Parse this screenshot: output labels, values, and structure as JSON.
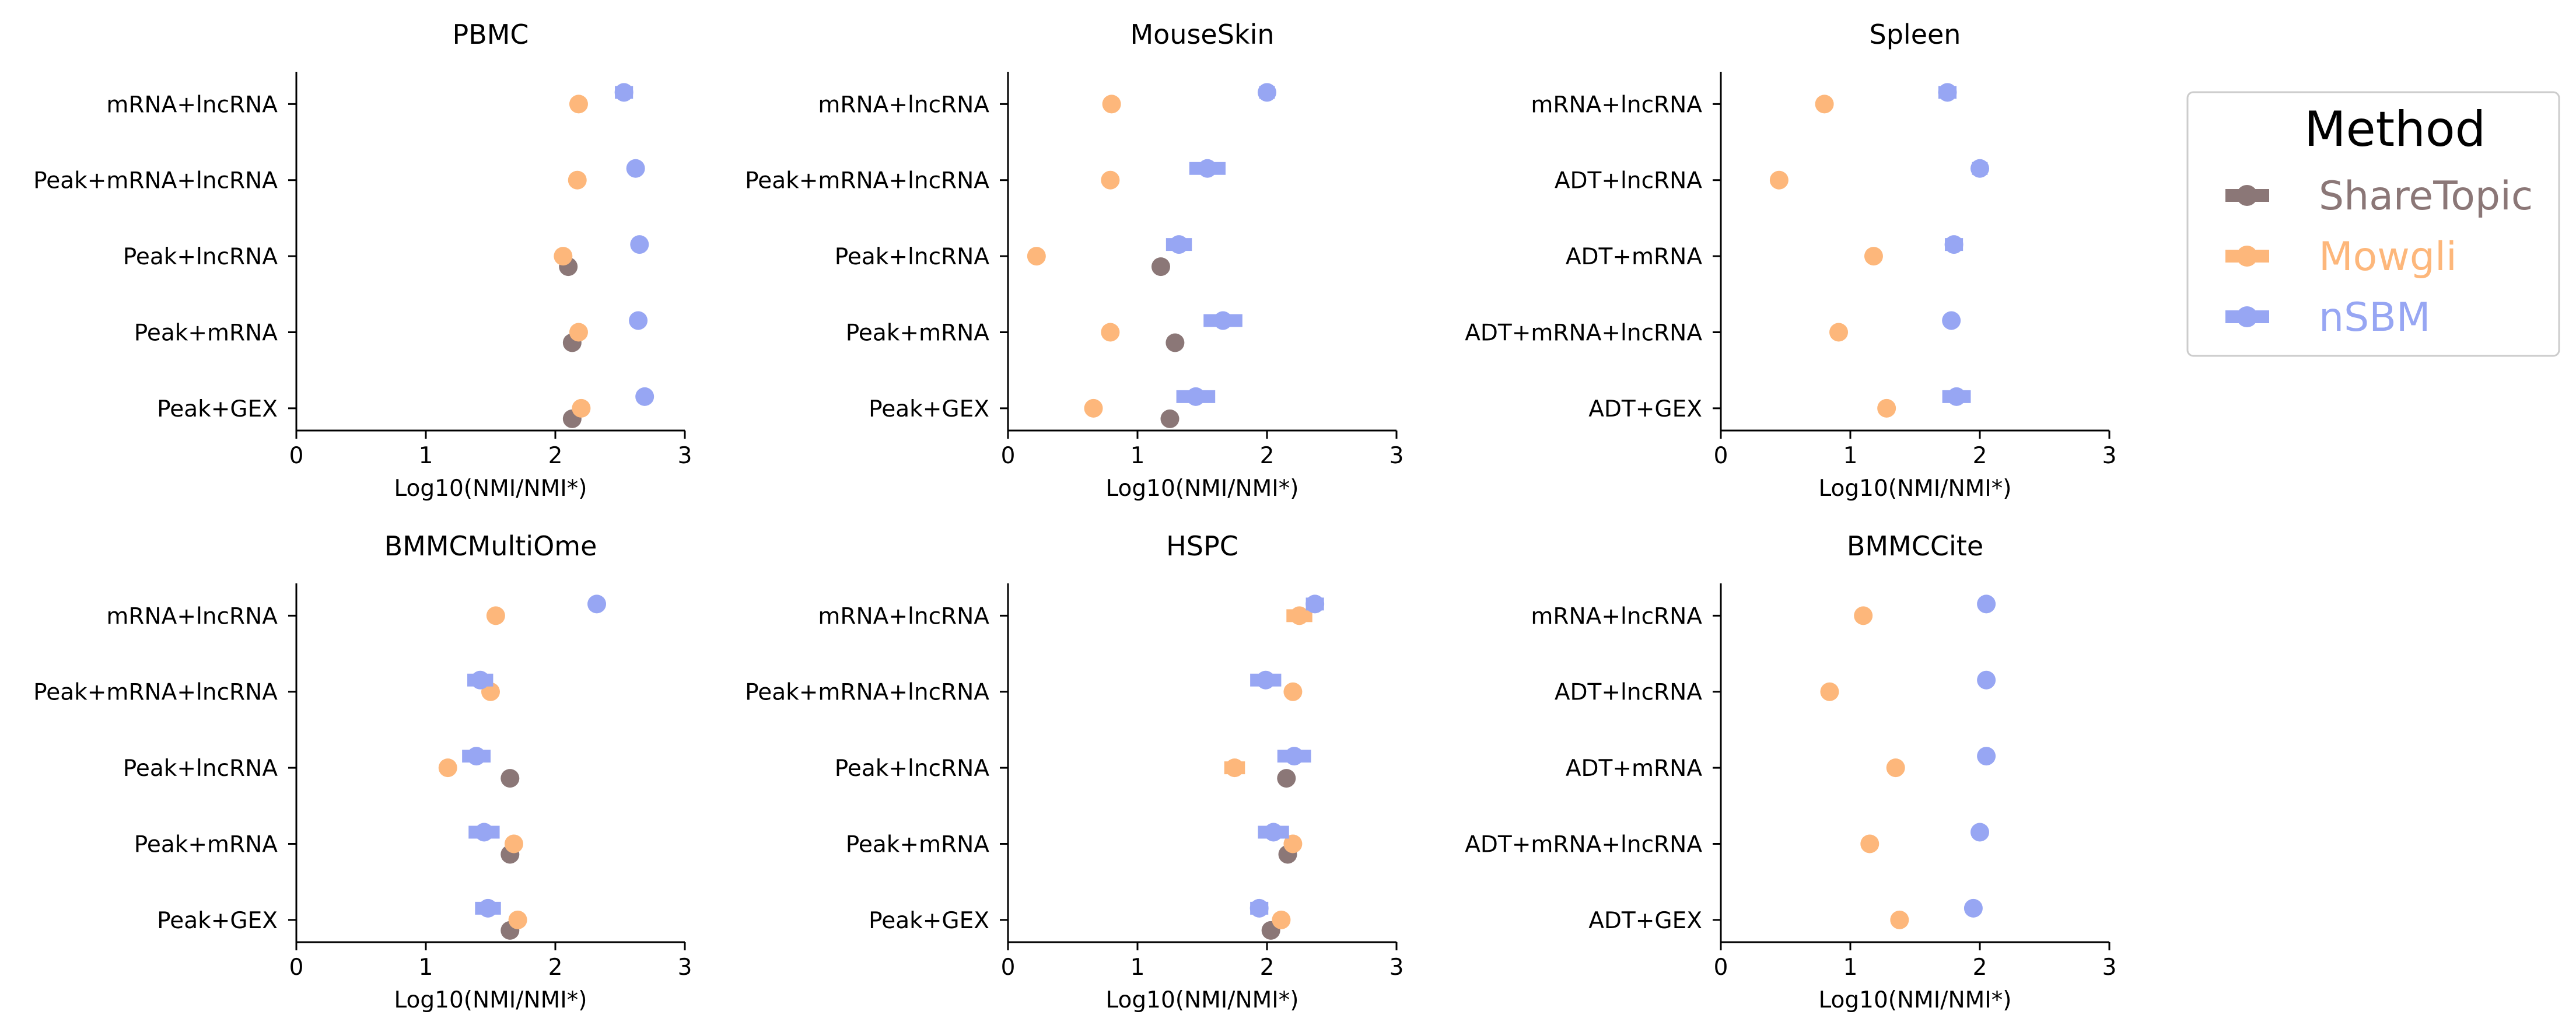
{
  "legend": {
    "title": "Method",
    "entries": [
      {
        "name": "ShareTopic",
        "color": "#8B7777"
      },
      {
        "name": "Mowgli",
        "color": "#FDB77B"
      },
      {
        "name": "nSBM",
        "color": "#97A6F3"
      }
    ]
  },
  "chart_data": [
    {
      "type": "scatter",
      "title": "PBMC",
      "xlabel": "Log10(NMI/NMI*)",
      "xlim": [
        0,
        3
      ],
      "xticks": [
        "0",
        "1",
        "2",
        "3"
      ],
      "categories": [
        "mRNA+lncRNA",
        "Peak+mRNA+lncRNA",
        "Peak+lncRNA",
        "Peak+mRNA",
        "Peak+GEX"
      ],
      "series": [
        {
          "name": "ShareTopic",
          "values": [
            null,
            null,
            2.1,
            2.13,
            2.13
          ],
          "errors": [
            0,
            0,
            0,
            0,
            0
          ]
        },
        {
          "name": "Mowgli",
          "values": [
            2.18,
            2.17,
            2.06,
            2.18,
            2.2
          ],
          "errors": [
            0,
            0,
            0,
            0,
            0
          ]
        },
        {
          "name": "nSBM",
          "values": [
            2.53,
            2.62,
            2.65,
            2.64,
            2.69
          ],
          "errors": [
            0.07,
            0,
            0,
            0,
            0
          ]
        }
      ]
    },
    {
      "type": "scatter",
      "title": "MouseSkin",
      "xlabel": "Log10(NMI/NMI*)",
      "xlim": [
        0,
        3
      ],
      "xticks": [
        "0",
        "1",
        "2",
        "3"
      ],
      "categories": [
        "mRNA+lncRNA",
        "Peak+mRNA+lncRNA",
        "Peak+lncRNA",
        "Peak+mRNA",
        "Peak+GEX"
      ],
      "series": [
        {
          "name": "ShareTopic",
          "values": [
            null,
            null,
            1.18,
            1.29,
            1.25
          ],
          "errors": [
            0,
            0,
            0,
            0,
            0
          ]
        },
        {
          "name": "Mowgli",
          "values": [
            0.8,
            0.79,
            0.22,
            0.79,
            0.66
          ],
          "errors": [
            0,
            0,
            0,
            0,
            0
          ]
        },
        {
          "name": "nSBM",
          "values": [
            2.0,
            1.54,
            1.32,
            1.66,
            1.45
          ],
          "errors": [
            0.06,
            0.14,
            0.1,
            0.15,
            0.15
          ]
        }
      ]
    },
    {
      "type": "scatter",
      "title": "Spleen",
      "xlabel": "Log10(NMI/NMI*)",
      "xlim": [
        0,
        3
      ],
      "xticks": [
        "0",
        "1",
        "2",
        "3"
      ],
      "categories": [
        "mRNA+lncRNA",
        "ADT+lncRNA",
        "ADT+mRNA",
        "ADT+mRNA+lncRNA",
        "ADT+GEX"
      ],
      "series": [
        {
          "name": "Mowgli",
          "values": [
            0.8,
            0.45,
            1.18,
            0.91,
            1.28
          ],
          "errors": [
            0,
            0,
            0,
            0,
            0
          ]
        },
        {
          "name": "nSBM",
          "values": [
            1.75,
            2.0,
            1.8,
            1.78,
            1.82
          ],
          "errors": [
            0.07,
            0.06,
            0.07,
            0.05,
            0.11
          ]
        }
      ]
    },
    {
      "type": "scatter",
      "title": "BMMCMultiOme",
      "xlabel": "Log10(NMI/NMI*)",
      "xlim": [
        0,
        3
      ],
      "xticks": [
        "0",
        "1",
        "2",
        "3"
      ],
      "categories": [
        "mRNA+lncRNA",
        "Peak+mRNA+lncRNA",
        "Peak+lncRNA",
        "Peak+mRNA",
        "Peak+GEX"
      ],
      "series": [
        {
          "name": "ShareTopic",
          "values": [
            null,
            null,
            1.65,
            1.65,
            1.65
          ],
          "errors": [
            0,
            0,
            0,
            0,
            0
          ]
        },
        {
          "name": "Mowgli",
          "values": [
            1.54,
            1.5,
            1.17,
            1.68,
            1.71
          ],
          "errors": [
            0,
            0,
            0,
            0,
            0
          ]
        },
        {
          "name": "nSBM",
          "values": [
            2.32,
            1.42,
            1.39,
            1.45,
            1.48
          ],
          "errors": [
            0,
            0.1,
            0.11,
            0.12,
            0.1
          ]
        }
      ]
    },
    {
      "type": "scatter",
      "title": "HSPC",
      "xlabel": "Log10(NMI/NMI*)",
      "xlim": [
        0,
        3
      ],
      "xticks": [
        "0",
        "1",
        "2",
        "3"
      ],
      "categories": [
        "mRNA+lncRNA",
        "Peak+mRNA+lncRNA",
        "Peak+lncRNA",
        "Peak+mRNA",
        "Peak+GEX"
      ],
      "series": [
        {
          "name": "ShareTopic",
          "values": [
            null,
            null,
            2.15,
            2.16,
            2.03
          ],
          "errors": [
            0,
            0,
            0,
            0,
            0
          ]
        },
        {
          "name": "Mowgli",
          "values": [
            2.25,
            2.2,
            1.75,
            2.2,
            2.11
          ],
          "errors": [
            0.1,
            0,
            0.08,
            0,
            0
          ]
        },
        {
          "name": "nSBM",
          "values": [
            2.37,
            1.99,
            2.21,
            2.05,
            1.94
          ],
          "errors": [
            0.07,
            0.12,
            0.13,
            0.12,
            0.07
          ]
        }
      ]
    },
    {
      "type": "scatter",
      "title": "BMMCCite",
      "xlabel": "Log10(NMI/NMI*)",
      "xlim": [
        0,
        3
      ],
      "xticks": [
        "0",
        "1",
        "2",
        "3"
      ],
      "categories": [
        "mRNA+lncRNA",
        "ADT+lncRNA",
        "ADT+mRNA",
        "ADT+mRNA+lncRNA",
        "ADT+GEX"
      ],
      "series": [
        {
          "name": "Mowgli",
          "values": [
            1.1,
            0.84,
            1.35,
            1.15,
            1.38
          ],
          "errors": [
            0,
            0,
            0,
            0,
            0
          ]
        },
        {
          "name": "nSBM",
          "values": [
            2.05,
            2.05,
            2.05,
            2.0,
            1.95
          ],
          "errors": [
            0,
            0,
            0,
            0.05,
            0.05
          ]
        }
      ]
    }
  ]
}
